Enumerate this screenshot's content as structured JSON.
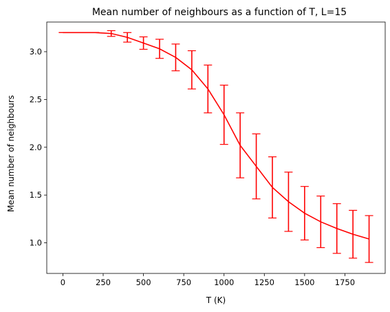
{
  "chart_data": {
    "type": "line",
    "title": "Mean number of neighbours as a function of T, L=15",
    "xlabel": "T (K)",
    "ylabel": "Mean number of neighbours",
    "xlim": [
      -100,
      2000
    ],
    "ylim": [
      0.68,
      3.31
    ],
    "xticks": [
      0,
      250,
      500,
      750,
      1000,
      1250,
      1500,
      1750
    ],
    "xtick_labels": [
      "0",
      "250",
      "500",
      "750",
      "1000",
      "1250",
      "1500",
      "1750"
    ],
    "yticks": [
      1.0,
      1.5,
      2.0,
      2.5,
      3.0
    ],
    "ytick_labels": [
      "1.0",
      "1.5",
      "2.0",
      "2.5",
      "3.0"
    ],
    "grid": false,
    "series": [
      {
        "color": "#ff0000",
        "x": [
          0,
          100,
          200,
          300,
          400,
          500,
          600,
          700,
          800,
          900,
          1000,
          1100,
          1200,
          1300,
          1400,
          1500,
          1600,
          1700,
          1800,
          1900
        ],
        "y": [
          3.2,
          3.2,
          3.2,
          3.19,
          3.15,
          3.09,
          3.03,
          2.94,
          2.81,
          2.61,
          2.34,
          2.02,
          1.8,
          1.58,
          1.43,
          1.31,
          1.22,
          1.15,
          1.09,
          1.04
        ],
        "yerr": [
          0,
          0,
          0,
          0.03,
          0.05,
          0.065,
          0.1,
          0.14,
          0.2,
          0.25,
          0.31,
          0.34,
          0.34,
          0.32,
          0.31,
          0.28,
          0.27,
          0.26,
          0.25,
          0.245
        ]
      }
    ]
  }
}
